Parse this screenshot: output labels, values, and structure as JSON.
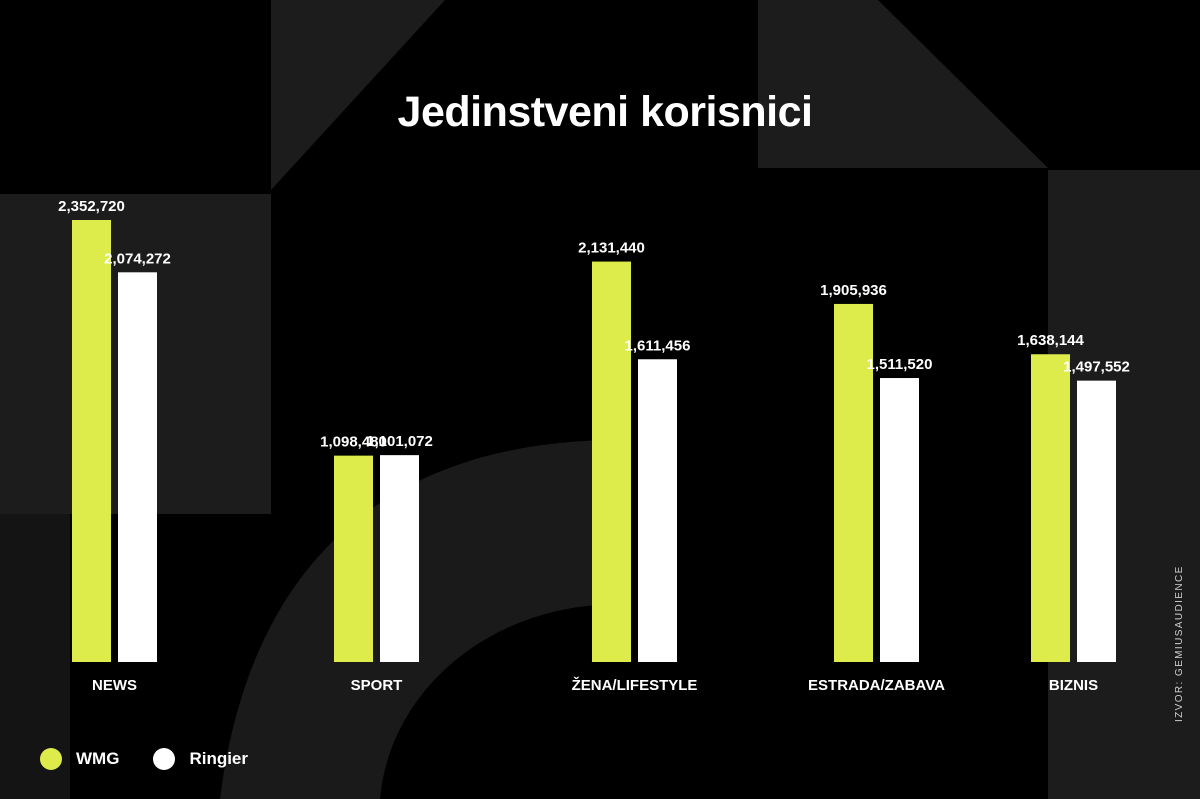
{
  "title": "Jedinstveni korisnici",
  "source": "IZVOR: GEMIUSAUDIENCE",
  "colors": {
    "wmg": "#ddec4a",
    "ringier": "#ffffff",
    "background": "#000000",
    "panel": "#1c1c1c"
  },
  "chart_data": {
    "type": "bar",
    "title": "Jedinstveni korisnici",
    "categories": [
      "NEWS",
      "SPORT",
      "ŽENA/LIFESTYLE",
      "ESTRADA/ZABAVA",
      "BIZNIS"
    ],
    "series": [
      {
        "name": "WMG",
        "color": "#ddec4a",
        "values": [
          2352720,
          1098480,
          2131440,
          1905936,
          1638144
        ],
        "labels": [
          "2,352,720",
          "1,098,480",
          "2,131,440",
          "1,905,936",
          "1,638,144"
        ]
      },
      {
        "name": "Ringier",
        "color": "#ffffff",
        "values": [
          2074272,
          1101072,
          1611456,
          1511520,
          1497552
        ],
        "labels": [
          "2,074,272",
          "1,101,072",
          "1,611,456",
          "1,511,520",
          "1,497,552"
        ]
      }
    ],
    "xlabel": "",
    "ylabel": "",
    "ylim": [
      0,
      2352720
    ],
    "legend_position": "bottom-left",
    "grid": false
  }
}
